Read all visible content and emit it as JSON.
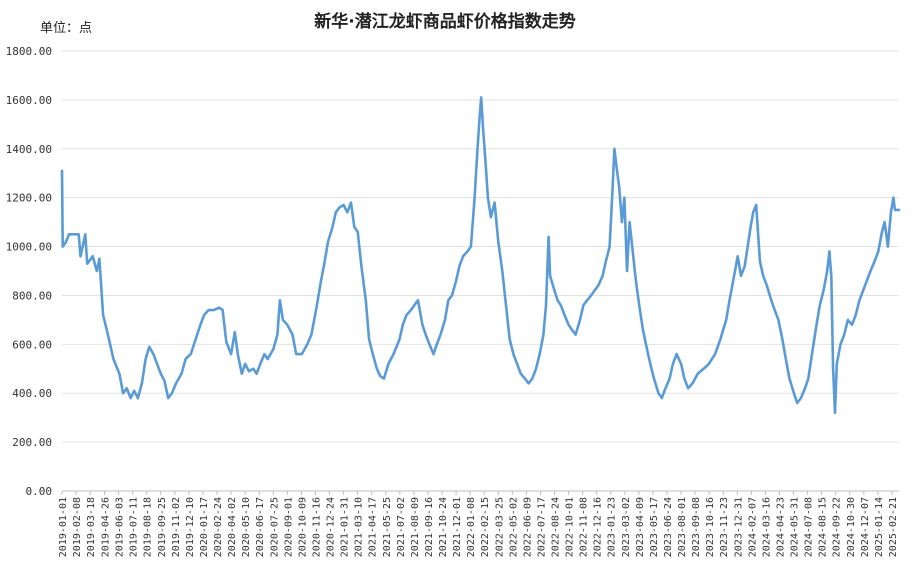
{
  "chart_data": {
    "type": "line",
    "title": "新华·潜江龙虾商品虾价格指数走势",
    "unit_label": "单位：点",
    "ylim": [
      0,
      1800
    ],
    "y_ticks": [
      "0.00",
      "200.00",
      "400.00",
      "600.00",
      "800.00",
      "1000.00",
      "1200.00",
      "1400.00",
      "1600.00",
      "1800.00"
    ],
    "grid": "horizontal",
    "legend": "none",
    "line_color": "#5B9BD5",
    "x_ticks": [
      "2019-01-01",
      "2019-02-08",
      "2019-03-18",
      "2019-04-26",
      "2019-06-03",
      "2019-07-11",
      "2019-08-18",
      "2019-09-25",
      "2019-11-02",
      "2019-12-10",
      "2020-01-17",
      "2020-02-24",
      "2020-04-02",
      "2020-05-10",
      "2020-06-17",
      "2020-07-25",
      "2020-09-01",
      "2020-10-09",
      "2020-11-16",
      "2020-12-24",
      "2021-01-31",
      "2021-03-10",
      "2021-04-17",
      "2021-05-25",
      "2021-07-02",
      "2021-08-09",
      "2021-09-16",
      "2021-10-24",
      "2021-12-01",
      "2022-01-08",
      "2022-02-15",
      "2022-03-25",
      "2022-05-02",
      "2022-06-09",
      "2022-07-17",
      "2022-08-24",
      "2022-10-01",
      "2022-11-08",
      "2022-12-16",
      "2023-01-23",
      "2023-03-02",
      "2023-04-09",
      "2023-05-17",
      "2023-06-24",
      "2023-08-01",
      "2023-09-08",
      "2023-10-16",
      "2023-11-23",
      "2023-12-31",
      "2024-02-07",
      "2024-03-16",
      "2024-04-23",
      "2024-05-31",
      "2024-07-08",
      "2024-08-15",
      "2024-09-22",
      "2024-10-30",
      "2024-12-07",
      "2025-01-14",
      "2025-02-21"
    ],
    "x_tick_text": [
      "2019-01-01",
      "2019-02-08",
      "2019-03-18",
      "2019-04-26",
      "2019-06-03",
      "2019-07-11",
      "2019-08-18",
      "2019-09-25",
      "2019-11-02",
      "2019-12-10",
      "2020-01-17",
      "2020-02-24",
      "2020-04-02",
      "2020-05-10",
      "2020-06-17",
      "2020-07-25",
      "2020-09-01",
      "2020-10-09",
      "2020-11-16",
      "2020-12-24",
      "2021-01-31",
      "2021-03-10",
      "2021-04-17",
      "2021-05-25",
      "2021-07-02",
      "2021-08-09",
      "2021-09-16",
      "2021-10-24",
      "2021-12-01",
      "2022-01-08",
      "2022-02-15",
      "2022-03-25",
      "2022-05-02",
      "2022-06-09",
      "2022-07-17",
      "2022-08-24",
      "2022-10-01",
      "2022-11-08",
      "2022-12-16",
      "2023-01-23",
      "2023-03-02",
      "2023-04-09",
      "2023-05-17",
      "2023-06-24",
      "2023-08-01",
      "2023-09-08",
      "2023-10-16",
      "2023-11-23",
      "2023-12-31",
      "2024-02-07",
      "2024-03-16",
      "2024-04-23",
      "2024-05-31",
      "2024-07-08",
      "2024-08-15",
      "2024-09-22",
      "2024-10-30",
      "2024-12-07",
      "2025-01-14",
      "2025-02-21"
    ],
    "x_end": "2025-03-12",
    "series": [
      {
        "points": [
          [
            "2019-01-01",
            1310
          ],
          [
            "2019-01-03",
            1000
          ],
          [
            "2019-01-12",
            1020
          ],
          [
            "2019-01-20",
            1050
          ],
          [
            "2019-02-15",
            1050
          ],
          [
            "2019-02-20",
            960
          ],
          [
            "2019-03-05",
            1050
          ],
          [
            "2019-03-10",
            930
          ],
          [
            "2019-03-25",
            960
          ],
          [
            "2019-04-05",
            900
          ],
          [
            "2019-04-12",
            950
          ],
          [
            "2019-04-22",
            720
          ],
          [
            "2019-05-05",
            640
          ],
          [
            "2019-05-20",
            540
          ],
          [
            "2019-06-05",
            480
          ],
          [
            "2019-06-15",
            400
          ],
          [
            "2019-06-25",
            420
          ],
          [
            "2019-07-05",
            380
          ],
          [
            "2019-07-15",
            410
          ],
          [
            "2019-07-25",
            380
          ],
          [
            "2019-08-05",
            440
          ],
          [
            "2019-08-15",
            540
          ],
          [
            "2019-08-25",
            590
          ],
          [
            "2019-09-05",
            560
          ],
          [
            "2019-09-15",
            520
          ],
          [
            "2019-09-25",
            480
          ],
          [
            "2019-10-05",
            450
          ],
          [
            "2019-10-15",
            380
          ],
          [
            "2019-10-25",
            400
          ],
          [
            "2019-11-05",
            440
          ],
          [
            "2019-11-20",
            480
          ],
          [
            "2019-12-01",
            540
          ],
          [
            "2019-12-15",
            560
          ],
          [
            "2019-12-28",
            620
          ],
          [
            "2020-01-10",
            680
          ],
          [
            "2020-01-20",
            720
          ],
          [
            "2020-02-01",
            740
          ],
          [
            "2020-02-15",
            740
          ],
          [
            "2020-03-01",
            750
          ],
          [
            "2020-03-10",
            740
          ],
          [
            "2020-03-20",
            610
          ],
          [
            "2020-04-02",
            560
          ],
          [
            "2020-04-12",
            650
          ],
          [
            "2020-04-20",
            560
          ],
          [
            "2020-05-01",
            480
          ],
          [
            "2020-05-10",
            520
          ],
          [
            "2020-05-20",
            490
          ],
          [
            "2020-06-01",
            500
          ],
          [
            "2020-06-10",
            480
          ],
          [
            "2020-06-20",
            520
          ],
          [
            "2020-07-01",
            560
          ],
          [
            "2020-07-10",
            540
          ],
          [
            "2020-07-25",
            580
          ],
          [
            "2020-08-05",
            640
          ],
          [
            "2020-08-12",
            780
          ],
          [
            "2020-08-20",
            700
          ],
          [
            "2020-09-01",
            680
          ],
          [
            "2020-09-15",
            640
          ],
          [
            "2020-09-25",
            560
          ],
          [
            "2020-10-10",
            560
          ],
          [
            "2020-10-25",
            600
          ],
          [
            "2020-11-05",
            640
          ],
          [
            "2020-11-20",
            760
          ],
          [
            "2020-12-01",
            860
          ],
          [
            "2020-12-10",
            930
          ],
          [
            "2020-12-20",
            1020
          ],
          [
            "2021-01-01",
            1080
          ],
          [
            "2021-01-10",
            1140
          ],
          [
            "2021-01-20",
            1160
          ],
          [
            "2021-01-31",
            1170
          ],
          [
            "2021-02-10",
            1140
          ],
          [
            "2021-02-20",
            1180
          ],
          [
            "2021-03-01",
            1080
          ],
          [
            "2021-03-10",
            1060
          ],
          [
            "2021-03-20",
            920
          ],
          [
            "2021-04-01",
            780
          ],
          [
            "2021-04-10",
            620
          ],
          [
            "2021-04-20",
            560
          ],
          [
            "2021-05-01",
            500
          ],
          [
            "2021-05-10",
            470
          ],
          [
            "2021-05-20",
            460
          ],
          [
            "2021-06-01",
            520
          ],
          [
            "2021-06-15",
            560
          ],
          [
            "2021-07-01",
            620
          ],
          [
            "2021-07-10",
            680
          ],
          [
            "2021-07-20",
            720
          ],
          [
            "2021-08-01",
            740
          ],
          [
            "2021-08-10",
            760
          ],
          [
            "2021-08-20",
            780
          ],
          [
            "2021-09-01",
            680
          ],
          [
            "2021-09-10",
            640
          ],
          [
            "2021-09-20",
            600
          ],
          [
            "2021-10-01",
            560
          ],
          [
            "2021-10-10",
            600
          ],
          [
            "2021-10-20",
            640
          ],
          [
            "2021-11-01",
            700
          ],
          [
            "2021-11-10",
            780
          ],
          [
            "2021-11-20",
            800
          ],
          [
            "2021-12-01",
            860
          ],
          [
            "2021-12-10",
            920
          ],
          [
            "2021-12-20",
            960
          ],
          [
            "2022-01-01",
            980
          ],
          [
            "2022-01-10",
            1000
          ],
          [
            "2022-01-20",
            1200
          ],
          [
            "2022-01-28",
            1400
          ],
          [
            "2022-02-03",
            1540
          ],
          [
            "2022-02-07",
            1610
          ],
          [
            "2022-02-12",
            1480
          ],
          [
            "2022-02-18",
            1360
          ],
          [
            "2022-02-25",
            1200
          ],
          [
            "2022-03-05",
            1120
          ],
          [
            "2022-03-15",
            1180
          ],
          [
            "2022-03-25",
            1020
          ],
          [
            "2022-04-05",
            900
          ],
          [
            "2022-04-15",
            760
          ],
          [
            "2022-04-25",
            620
          ],
          [
            "2022-05-05",
            560
          ],
          [
            "2022-05-15",
            520
          ],
          [
            "2022-05-25",
            480
          ],
          [
            "2022-06-05",
            460
          ],
          [
            "2022-06-15",
            440
          ],
          [
            "2022-06-25",
            460
          ],
          [
            "2022-07-05",
            500
          ],
          [
            "2022-07-15",
            560
          ],
          [
            "2022-07-25",
            640
          ],
          [
            "2022-08-01",
            760
          ],
          [
            "2022-08-08",
            1040
          ],
          [
            "2022-08-12",
            880
          ],
          [
            "2022-08-20",
            840
          ],
          [
            "2022-09-01",
            780
          ],
          [
            "2022-09-10",
            760
          ],
          [
            "2022-09-20",
            720
          ],
          [
            "2022-10-01",
            680
          ],
          [
            "2022-10-10",
            660
          ],
          [
            "2022-10-20",
            640
          ],
          [
            "2022-11-01",
            700
          ],
          [
            "2022-11-10",
            760
          ],
          [
            "2022-11-20",
            780
          ],
          [
            "2022-12-01",
            800
          ],
          [
            "2022-12-10",
            820
          ],
          [
            "2022-12-20",
            840
          ],
          [
            "2023-01-01",
            880
          ],
          [
            "2023-01-10",
            940
          ],
          [
            "2023-01-20",
            1000
          ],
          [
            "2023-01-28",
            1240
          ],
          [
            "2023-02-02",
            1400
          ],
          [
            "2023-02-08",
            1320
          ],
          [
            "2023-02-15",
            1240
          ],
          [
            "2023-02-22",
            1100
          ],
          [
            "2023-03-01",
            1200
          ],
          [
            "2023-03-08",
            900
          ],
          [
            "2023-03-15",
            1100
          ],
          [
            "2023-03-22",
            1000
          ],
          [
            "2023-04-01",
            860
          ],
          [
            "2023-04-10",
            760
          ],
          [
            "2023-04-20",
            660
          ],
          [
            "2023-05-01",
            580
          ],
          [
            "2023-05-10",
            520
          ],
          [
            "2023-05-20",
            460
          ],
          [
            "2023-06-01",
            400
          ],
          [
            "2023-06-10",
            380
          ],
          [
            "2023-06-20",
            420
          ],
          [
            "2023-07-01",
            460
          ],
          [
            "2023-07-10",
            520
          ],
          [
            "2023-07-20",
            560
          ],
          [
            "2023-08-01",
            520
          ],
          [
            "2023-08-10",
            460
          ],
          [
            "2023-08-20",
            420
          ],
          [
            "2023-09-01",
            440
          ],
          [
            "2023-09-15",
            480
          ],
          [
            "2023-10-01",
            500
          ],
          [
            "2023-10-15",
            520
          ],
          [
            "2023-11-01",
            560
          ],
          [
            "2023-11-15",
            620
          ],
          [
            "2023-12-01",
            700
          ],
          [
            "2023-12-10",
            780
          ],
          [
            "2023-12-20",
            860
          ],
          [
            "2024-01-01",
            960
          ],
          [
            "2024-01-10",
            880
          ],
          [
            "2024-01-20",
            920
          ],
          [
            "2024-01-28",
            1000
          ],
          [
            "2024-02-05",
            1080
          ],
          [
            "2024-02-12",
            1140
          ],
          [
            "2024-02-20",
            1170
          ],
          [
            "2024-03-01",
            940
          ],
          [
            "2024-03-10",
            880
          ],
          [
            "2024-03-20",
            840
          ],
          [
            "2024-04-01",
            780
          ],
          [
            "2024-04-10",
            740
          ],
          [
            "2024-04-20",
            700
          ],
          [
            "2024-05-01",
            620
          ],
          [
            "2024-05-10",
            540
          ],
          [
            "2024-05-20",
            460
          ],
          [
            "2024-06-01",
            400
          ],
          [
            "2024-06-10",
            360
          ],
          [
            "2024-06-20",
            380
          ],
          [
            "2024-07-01",
            420
          ],
          [
            "2024-07-10",
            460
          ],
          [
            "2024-07-20",
            560
          ],
          [
            "2024-08-01",
            680
          ],
          [
            "2024-08-10",
            760
          ],
          [
            "2024-08-20",
            820
          ],
          [
            "2024-08-30",
            900
          ],
          [
            "2024-09-05",
            980
          ],
          [
            "2024-09-10",
            880
          ],
          [
            "2024-09-15",
            500
          ],
          [
            "2024-09-20",
            320
          ],
          [
            "2024-09-25",
            520
          ],
          [
            "2024-10-05",
            600
          ],
          [
            "2024-10-15",
            640
          ],
          [
            "2024-10-25",
            700
          ],
          [
            "2024-11-05",
            680
          ],
          [
            "2024-11-15",
            720
          ],
          [
            "2024-11-25",
            780
          ],
          [
            "2024-12-05",
            820
          ],
          [
            "2024-12-15",
            860
          ],
          [
            "2024-12-25",
            900
          ],
          [
            "2025-01-05",
            940
          ],
          [
            "2025-01-15",
            980
          ],
          [
            "2025-01-25",
            1060
          ],
          [
            "2025-02-01",
            1100
          ],
          [
            "2025-02-10",
            1000
          ],
          [
            "2025-02-18",
            1140
          ],
          [
            "2025-02-25",
            1200
          ],
          [
            "2025-03-01",
            1150
          ],
          [
            "2025-03-12",
            1150
          ]
        ]
      }
    ]
  }
}
